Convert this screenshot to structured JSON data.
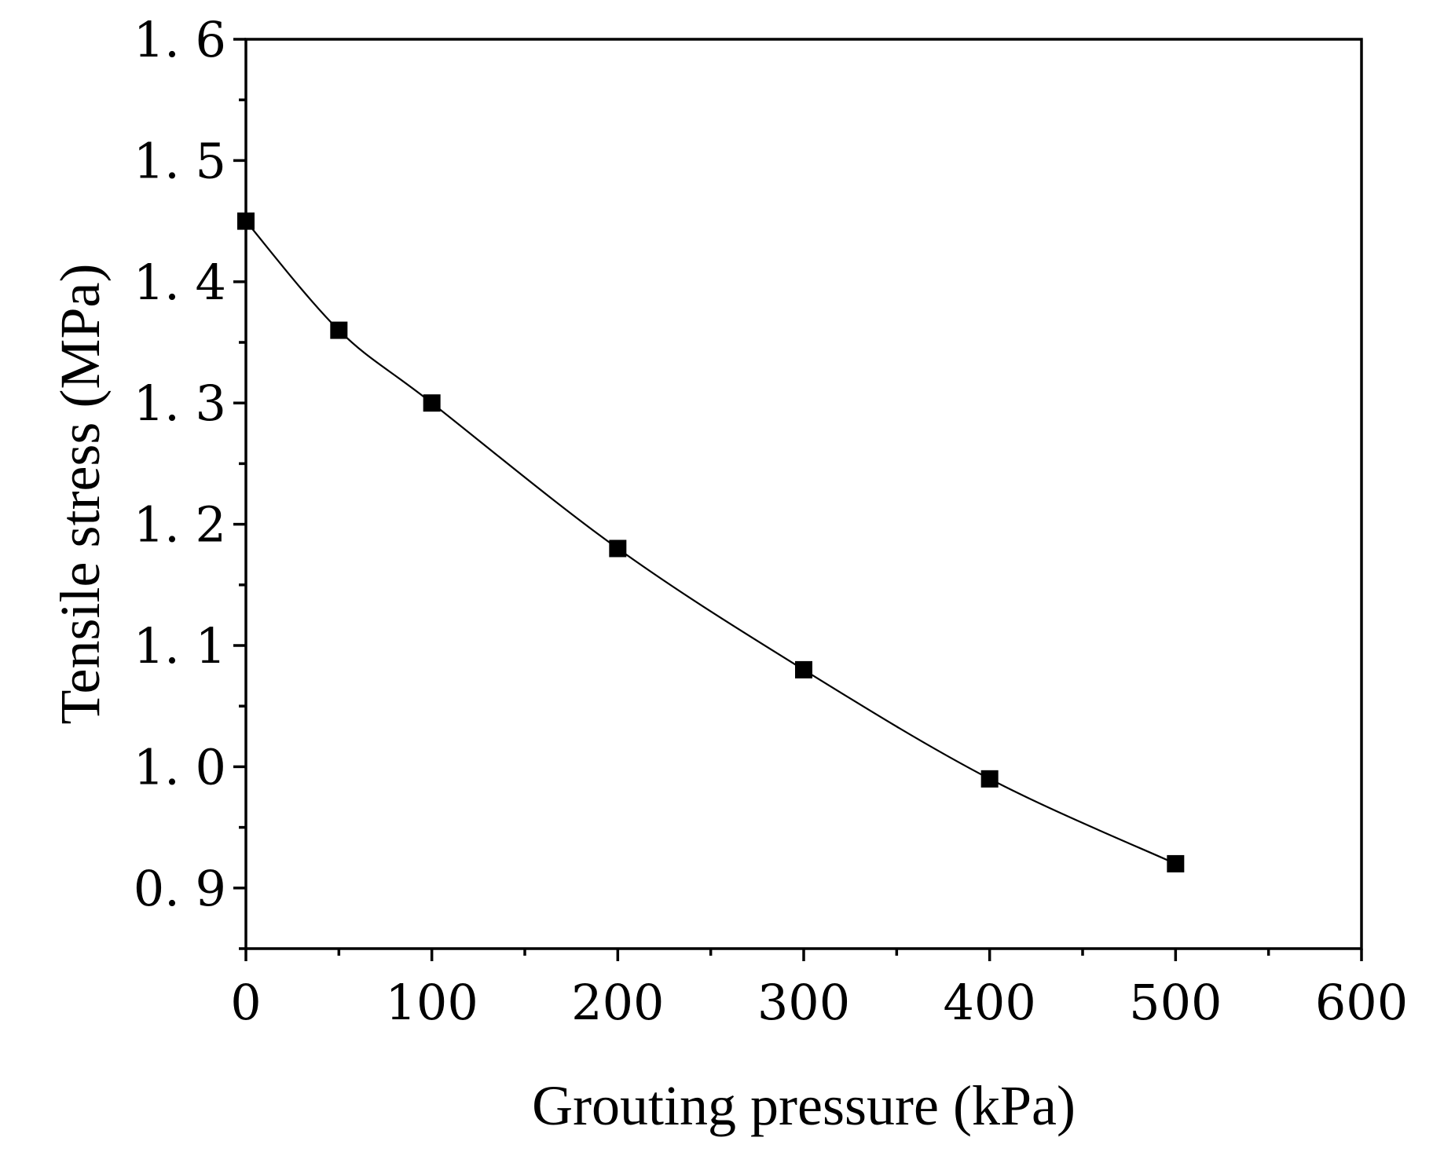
{
  "chart_data": {
    "type": "line",
    "title": "",
    "xlabel": "Grouting pressure (kPa)",
    "ylabel": "Tensile stress (MPa)",
    "xlim": [
      0,
      600
    ],
    "ylim": [
      0.85,
      1.6
    ],
    "grid": false,
    "legend": "none",
    "xticks": [
      0,
      100,
      200,
      300,
      400,
      500,
      600
    ],
    "xtick_labels": [
      "0",
      "100",
      "200",
      "300",
      "400",
      "500",
      "600"
    ],
    "xminor_ticks": [
      50,
      150,
      250,
      350,
      450,
      550
    ],
    "yticks": [
      0.9,
      1.0,
      1.1,
      1.2,
      1.3,
      1.4,
      1.5,
      1.6
    ],
    "ytick_labels": [
      "0. 9",
      "1. 0",
      "1. 1",
      "1. 2",
      "1. 3",
      "1. 4",
      "1. 5",
      "1. 6"
    ],
    "yminor_ticks": [
      0.85,
      0.95,
      1.05,
      1.15,
      1.25,
      1.35,
      1.45,
      1.55
    ],
    "series": [
      {
        "name": "Tensile stress",
        "marker": "square",
        "line": "smooth",
        "color": "#000000",
        "x": [
          0,
          50,
          100,
          200,
          300,
          400,
          500
        ],
        "y": [
          1.45,
          1.36,
          1.3,
          1.18,
          1.08,
          0.99,
          0.92
        ]
      }
    ]
  }
}
